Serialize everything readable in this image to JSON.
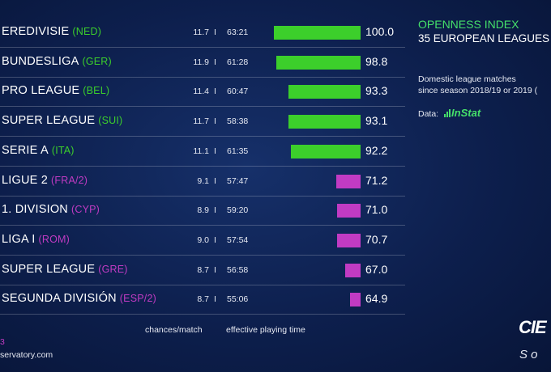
{
  "chart_data": {
    "type": "bar",
    "orientation": "horizontal",
    "xlim": [
      0,
      100
    ],
    "categories": [
      {
        "league": "EREDIVISIE",
        "code": "(NED)",
        "chances": "11.7",
        "time": "63:21",
        "value": 100.0,
        "value_label": "100.0",
        "color": "#3ccf2b"
      },
      {
        "league": "BUNDESLIGA",
        "code": "(GER)",
        "chances": "11.9",
        "time": "61:28",
        "value": 98.8,
        "value_label": "98.8",
        "color": "#3ccf2b"
      },
      {
        "league": "PRO LEAGUE",
        "code": "(BEL)",
        "chances": "11.4",
        "time": "60:47",
        "value": 93.3,
        "value_label": "93.3",
        "color": "#3ccf2b"
      },
      {
        "league": "SUPER LEAGUE",
        "code": "(SUI)",
        "chances": "11.7",
        "time": "58:38",
        "value": 93.1,
        "value_label": "93.1",
        "color": "#3ccf2b"
      },
      {
        "league": "SERIE A",
        "code": "(ITA)",
        "chances": "11.1",
        "time": "61:35",
        "value": 92.2,
        "value_label": "92.2",
        "color": "#3ccf2b"
      },
      {
        "league": "LIGUE 2",
        "code": "(FRA/2)",
        "chances": "9.1",
        "time": "57:47",
        "value": 71.2,
        "value_label": "71.2",
        "color": "#c13bc3"
      },
      {
        "league": "1. DIVISION",
        "code": "(CYP)",
        "chances": "8.9",
        "time": "59:20",
        "value": 71.0,
        "value_label": "71.0",
        "color": "#c13bc3"
      },
      {
        "league": "LIGA I",
        "code": "(ROM)",
        "chances": "9.0",
        "time": "57:54",
        "value": 70.7,
        "value_label": "70.7",
        "color": "#c13bc3"
      },
      {
        "league": "SUPER LEAGUE",
        "code": "(GRE)",
        "chances": "8.7",
        "time": "56:58",
        "value": 67.0,
        "value_label": "67.0",
        "color": "#c13bc3"
      },
      {
        "league": "SEGUNDA DIVISIÓN",
        "code": "(ESP/2)",
        "chances": "8.7",
        "time": "55:06",
        "value": 64.9,
        "value_label": "64.9",
        "color": "#c13bc3"
      }
    ],
    "column_labels": {
      "chances": "chances/match",
      "time": "effective playing time"
    },
    "separator": "I",
    "title": "OPENNESS INDEX",
    "subtitle": "35 EUROPEAN LEAGUES",
    "note_line1": "Domestic league matches",
    "note_line2": "since season 2018/19 or 2019 (",
    "data_label": "Data:",
    "data_source": "InStat",
    "colors": {
      "top_group": "#3ccf2b",
      "bottom_group": "#c13bc3",
      "accent": "#45e06a",
      "background": "#0d1f4d"
    }
  },
  "footer": {
    "fragment": "3",
    "url_fragment": "servatory.com"
  },
  "brand": {
    "logo_text": "CIE",
    "logo_sub": "S o"
  }
}
